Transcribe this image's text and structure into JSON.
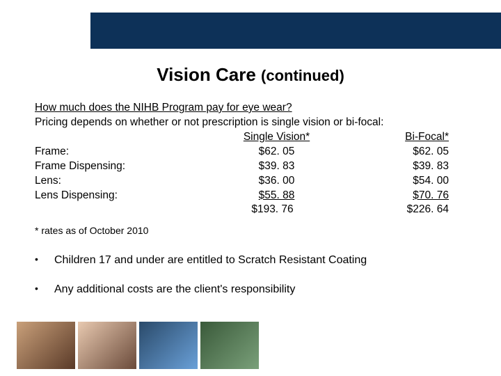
{
  "header": {
    "band_color": "#0d3158"
  },
  "title": {
    "main": "Vision Care",
    "suffix": "(continued)"
  },
  "question": "How much does the NIHB Program pay for eye wear?",
  "intro": "Pricing depends on whether or not prescription is single vision or bi-focal:",
  "table": {
    "col1_header": "Single Vision*",
    "col2_header": "Bi-Focal*",
    "rows": [
      {
        "label": "Frame:",
        "sv": "$62. 05",
        "bf": "$62. 05"
      },
      {
        "label": "Frame Dispensing:",
        "sv": "$39. 83",
        "bf": "$39. 83"
      },
      {
        "label": "Lens:",
        "sv": "$36. 00",
        "bf": "$54. 00"
      },
      {
        "label": "Lens Dispensing:",
        "sv": "$55. 88",
        "bf": "$70. 76"
      }
    ],
    "total": {
      "label": "",
      "sv": "$193. 76",
      "bf": "$226. 64"
    }
  },
  "footnote": "* rates as of October 2010",
  "bullets": [
    "Children 17 and under are entitled to Scratch Resistant Coating",
    "Any additional costs are the client's responsibility"
  ]
}
